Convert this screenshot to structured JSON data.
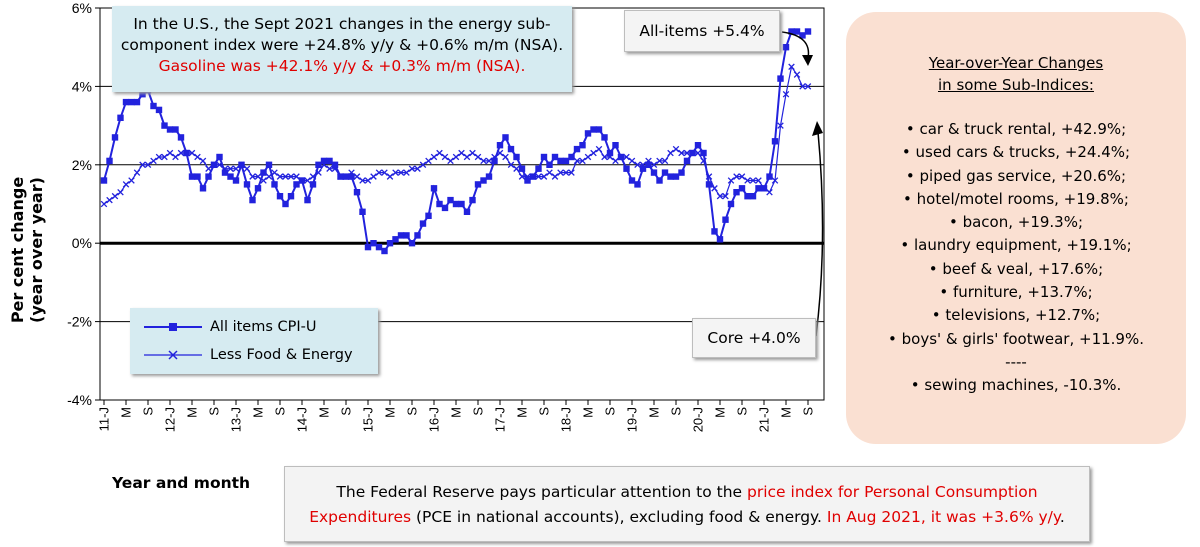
{
  "chart_data": {
    "type": "line",
    "xlabel": "Year and month",
    "ylabel_line1": "Per cent change",
    "ylabel_line2": "(year over year)",
    "ylim": [
      -4,
      6
    ],
    "yticks": [
      -4,
      -2,
      0,
      2,
      4,
      6
    ],
    "ytick_labels": [
      "-4%",
      "-2%",
      "0%",
      "2%",
      "4%",
      "6%"
    ],
    "x_start": "2011-01",
    "x_end": "2021-09",
    "x_ticks": [
      {
        "month": 0,
        "label": "11-J"
      },
      {
        "month": 4,
        "label": "M"
      },
      {
        "month": 8,
        "label": "S"
      },
      {
        "month": 12,
        "label": "12-J"
      },
      {
        "month": 16,
        "label": "M"
      },
      {
        "month": 20,
        "label": "S"
      },
      {
        "month": 24,
        "label": "13-J"
      },
      {
        "month": 28,
        "label": "M"
      },
      {
        "month": 32,
        "label": "S"
      },
      {
        "month": 36,
        "label": "14-J"
      },
      {
        "month": 40,
        "label": "M"
      },
      {
        "month": 44,
        "label": "S"
      },
      {
        "month": 48,
        "label": "15-J"
      },
      {
        "month": 52,
        "label": "M"
      },
      {
        "month": 56,
        "label": "S"
      },
      {
        "month": 60,
        "label": "16-J"
      },
      {
        "month": 64,
        "label": "M"
      },
      {
        "month": 68,
        "label": "S"
      },
      {
        "month": 72,
        "label": "17-J"
      },
      {
        "month": 76,
        "label": "M"
      },
      {
        "month": 80,
        "label": "S"
      },
      {
        "month": 84,
        "label": "18-J"
      },
      {
        "month": 88,
        "label": "M"
      },
      {
        "month": 92,
        "label": "S"
      },
      {
        "month": 96,
        "label": "19-J"
      },
      {
        "month": 100,
        "label": "M"
      },
      {
        "month": 104,
        "label": "S"
      },
      {
        "month": 108,
        "label": "20-J"
      },
      {
        "month": 112,
        "label": "M"
      },
      {
        "month": 116,
        "label": "S"
      },
      {
        "month": 120,
        "label": "21-J"
      },
      {
        "month": 124,
        "label": "M"
      },
      {
        "month": 128,
        "label": "S"
      }
    ],
    "grid": "horizontal",
    "series": [
      {
        "name": "All items CPI-U",
        "color": "#2222dd",
        "marker": "square",
        "values": [
          1.6,
          2.1,
          2.7,
          3.2,
          3.6,
          3.6,
          3.6,
          3.8,
          3.9,
          3.5,
          3.4,
          3.0,
          2.9,
          2.9,
          2.7,
          2.3,
          1.7,
          1.7,
          1.4,
          1.7,
          2.0,
          2.2,
          1.8,
          1.7,
          1.6,
          2.0,
          1.5,
          1.1,
          1.4,
          1.8,
          2.0,
          1.5,
          1.2,
          1.0,
          1.2,
          1.5,
          1.6,
          1.1,
          1.5,
          2.0,
          2.1,
          2.1,
          2.0,
          1.7,
          1.7,
          1.7,
          1.3,
          0.8,
          -0.1,
          0.0,
          -0.1,
          -0.2,
          0.0,
          0.1,
          0.2,
          0.2,
          0.0,
          0.2,
          0.5,
          0.7,
          1.4,
          1.0,
          0.9,
          1.1,
          1.0,
          1.0,
          0.8,
          1.1,
          1.5,
          1.6,
          1.7,
          2.1,
          2.5,
          2.7,
          2.4,
          2.2,
          1.9,
          1.6,
          1.7,
          1.9,
          2.2,
          2.0,
          2.2,
          2.1,
          2.1,
          2.2,
          2.4,
          2.5,
          2.8,
          2.9,
          2.9,
          2.7,
          2.3,
          2.5,
          2.2,
          1.9,
          1.6,
          1.5,
          1.9,
          2.0,
          1.8,
          1.6,
          1.8,
          1.7,
          1.7,
          1.8,
          2.1,
          2.3,
          2.5,
          2.3,
          1.5,
          0.3,
          0.1,
          0.6,
          1.0,
          1.3,
          1.4,
          1.2,
          1.2,
          1.4,
          1.4,
          1.7,
          2.6,
          4.2,
          5.0,
          5.4,
          5.4,
          5.3,
          5.4
        ]
      },
      {
        "name": "Less Food & Energy",
        "color": "#2222dd",
        "marker": "x",
        "values": [
          1.0,
          1.1,
          1.2,
          1.3,
          1.5,
          1.6,
          1.8,
          2.0,
          2.0,
          2.1,
          2.2,
          2.2,
          2.3,
          2.2,
          2.3,
          2.3,
          2.3,
          2.2,
          2.1,
          1.9,
          2.0,
          2.0,
          1.9,
          1.9,
          1.9,
          2.0,
          1.9,
          1.7,
          1.7,
          1.6,
          1.7,
          1.8,
          1.7,
          1.7,
          1.7,
          1.7,
          1.6,
          1.6,
          1.7,
          1.8,
          2.0,
          1.9,
          1.9,
          1.7,
          1.7,
          1.8,
          1.7,
          1.6,
          1.6,
          1.7,
          1.8,
          1.8,
          1.7,
          1.8,
          1.8,
          1.8,
          1.9,
          1.9,
          2.0,
          2.1,
          2.2,
          2.3,
          2.2,
          2.1,
          2.2,
          2.3,
          2.2,
          2.3,
          2.2,
          2.1,
          2.1,
          2.2,
          2.3,
          2.2,
          2.0,
          1.9,
          1.7,
          1.7,
          1.7,
          1.7,
          1.7,
          1.8,
          1.7,
          1.8,
          1.8,
          1.8,
          2.1,
          2.1,
          2.2,
          2.3,
          2.4,
          2.2,
          2.2,
          2.1,
          2.2,
          2.2,
          2.1,
          2.0,
          2.0,
          2.1,
          2.0,
          2.1,
          2.1,
          2.3,
          2.4,
          2.3,
          2.3,
          2.3,
          2.3,
          2.1,
          1.7,
          1.4,
          1.2,
          1.2,
          1.6,
          1.7,
          1.7,
          1.6,
          1.6,
          1.6,
          1.4,
          1.3,
          1.6,
          3.0,
          3.8,
          4.5,
          4.3,
          4.0,
          4.0
        ]
      }
    ]
  },
  "top_note": {
    "line1": "In the U.S., the Sept 2021 changes in the energy sub-",
    "line2": "component index were +24.8% y/y & +0.6% m/m (NSA).",
    "line3_red": "Gasoline was +42.1% y/y & +0.3% m/m (NSA)."
  },
  "callouts": {
    "all_items": "All-items +5.4%",
    "core": "Core +4.0%"
  },
  "legend": {
    "item1": "All items CPI-U",
    "item2": "Less Food & Energy"
  },
  "side_panel": {
    "title_line1": "Year-over-Year Changes",
    "title_line2": "in some Sub-Indices:",
    "items": [
      "• car & truck rental, +42.9%;",
      "• used cars & trucks, +24.4%;",
      "• piped gas service, +20.6%;",
      "• hotel/motel rooms, +19.8%;",
      "• bacon, +19.3%;",
      "• laundry equipment, +19.1%;",
      "• beef & veal, +17.6%;",
      "• furniture, +13.7%;",
      "• televisions, +12.7%;",
      "• boys' & girls' footwear, +11.9%.",
      "----",
      "• sewing machines, -10.3%."
    ]
  },
  "bottom_note": {
    "part1": "The Federal Reserve pays particular attention to the ",
    "part2_red": "price index for Personal Consumption Expenditures",
    "part3": " (PCE in national accounts), excluding food & energy. ",
    "part4_red": "In Aug 2021, it was +3.6% y/y",
    "part5": "."
  },
  "colors": {
    "series": "#2222dd",
    "red_text": "#e00000",
    "callout_blue": "#d6ebf1",
    "side_panel": "#fae0d2"
  }
}
